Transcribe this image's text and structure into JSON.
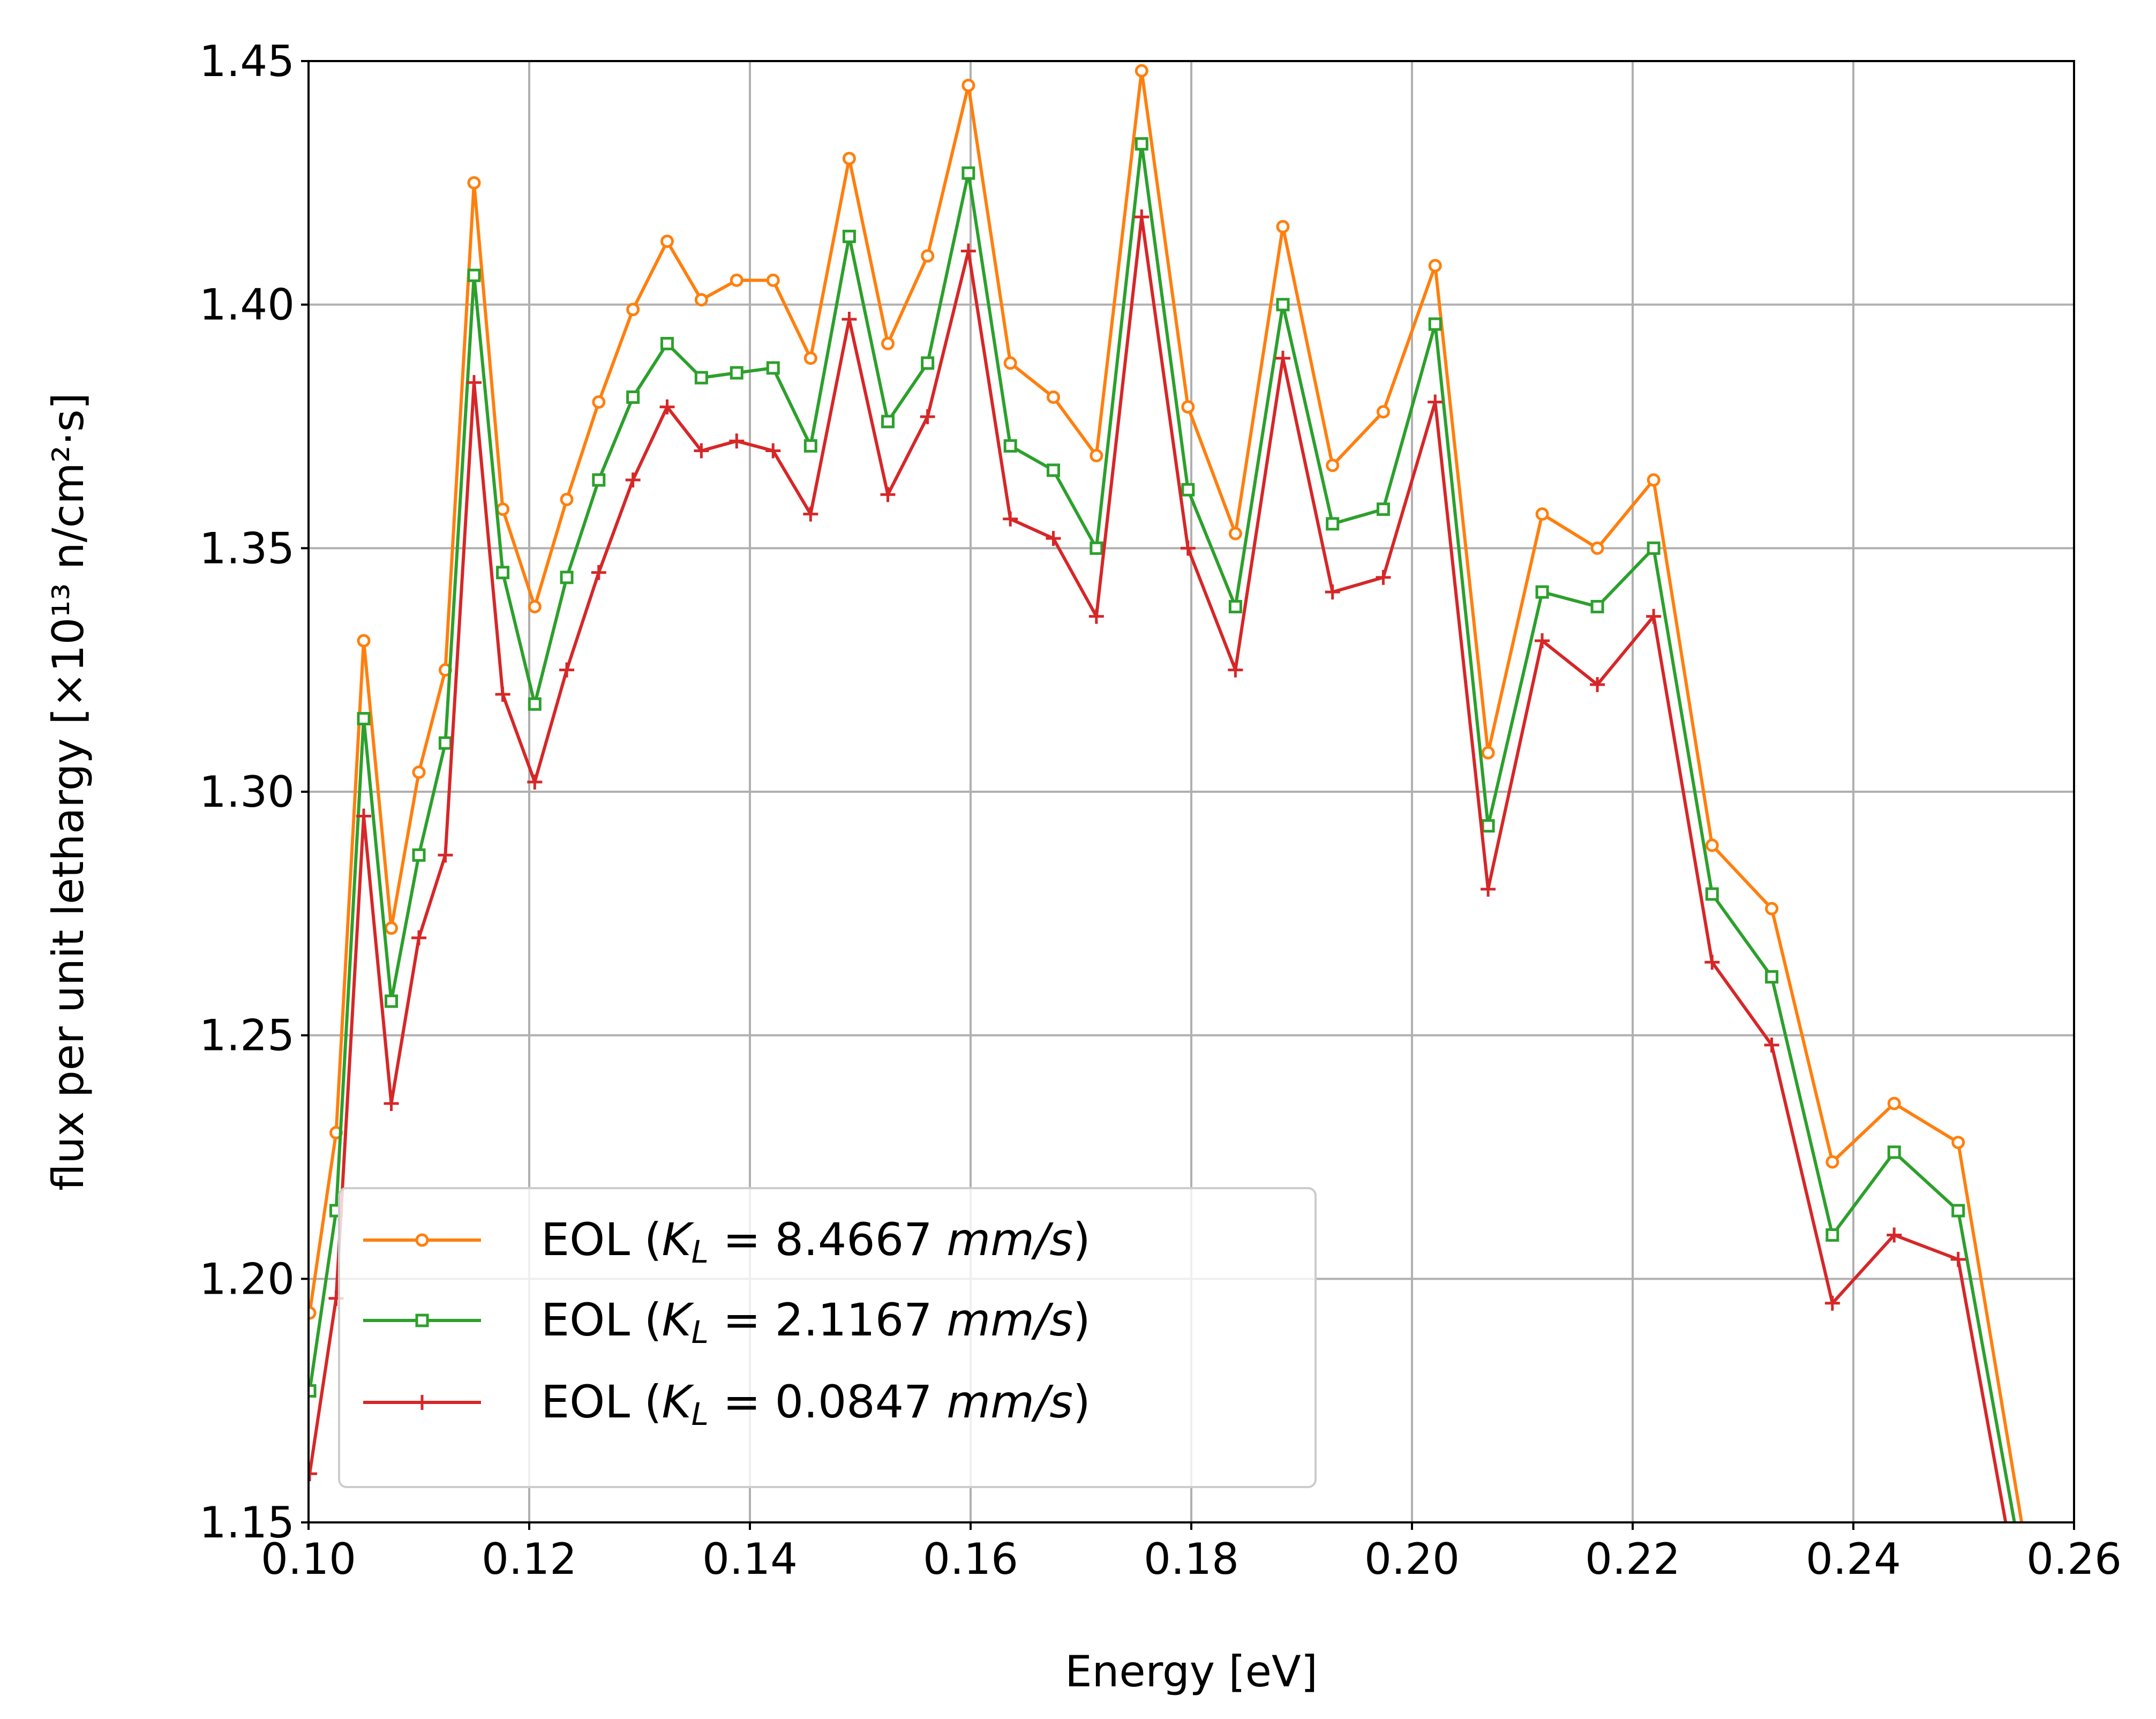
{
  "chart_data": {
    "type": "line",
    "xlabel": "Energy [eV]",
    "ylabel": "flux per unit lethargy [×10¹³ n/cm²·s]",
    "xlim": [
      0.1,
      0.26
    ],
    "ylim": [
      1.15,
      1.45
    ],
    "xticks": [
      "0.10",
      "0.12",
      "0.14",
      "0.16",
      "0.18",
      "0.20",
      "0.22",
      "0.24",
      "0.26"
    ],
    "yticks": [
      "1.15",
      "1.20",
      "1.25",
      "1.30",
      "1.35",
      "1.40",
      "1.45"
    ],
    "grid": true,
    "legend_position": "lower-left",
    "x": [
      0.1001,
      0.1025,
      0.105,
      0.1075,
      0.11,
      0.1124,
      0.115,
      0.1176,
      0.1205,
      0.1234,
      0.1263,
      0.1294,
      0.1325,
      0.1356,
      0.1388,
      0.1421,
      0.1455,
      0.149,
      0.1525,
      0.1561,
      0.1598,
      0.1636,
      0.1675,
      0.1714,
      0.1755,
      0.1797,
      0.184,
      0.1883,
      0.1928,
      0.1974,
      0.2021,
      0.2069,
      0.2118,
      0.2168,
      0.2219,
      0.2272,
      0.2326,
      0.2381,
      0.2437,
      0.2495,
      0.2554
    ],
    "series": [
      {
        "name": "EOL (K_L = 8.4667 mm/s)",
        "label_prefix": "EOL (",
        "label_var": "K",
        "label_sub": "L",
        "label_eq": " = 8.4667 ",
        "label_unit": "mm/s",
        "label_close": ")",
        "color": "#ff7f0e",
        "marker": "circle",
        "values": [
          1.193,
          1.23,
          1.331,
          1.272,
          1.304,
          1.325,
          1.425,
          1.358,
          1.338,
          1.36,
          1.38,
          1.399,
          1.413,
          1.401,
          1.405,
          1.405,
          1.389,
          1.43,
          1.392,
          1.41,
          1.445,
          1.388,
          1.381,
          1.369,
          1.448,
          1.379,
          1.353,
          1.416,
          1.367,
          1.378,
          1.408,
          1.308,
          1.357,
          1.35,
          1.364,
          1.289,
          1.276,
          1.224,
          1.236,
          1.228,
          1.148
        ]
      },
      {
        "name": "EOL (K_L = 2.1167 mm/s)",
        "label_prefix": "EOL (",
        "label_var": "K",
        "label_sub": "L",
        "label_eq": " = 2.1167 ",
        "label_unit": "mm/s",
        "label_close": ")",
        "color": "#2ca02c",
        "marker": "square",
        "values": [
          1.177,
          1.214,
          1.315,
          1.257,
          1.287,
          1.31,
          1.406,
          1.345,
          1.318,
          1.344,
          1.364,
          1.381,
          1.392,
          1.385,
          1.386,
          1.387,
          1.371,
          1.414,
          1.376,
          1.388,
          1.427,
          1.371,
          1.366,
          1.35,
          1.433,
          1.362,
          1.338,
          1.4,
          1.355,
          1.358,
          1.396,
          1.293,
          1.341,
          1.338,
          1.35,
          1.279,
          1.262,
          1.209,
          1.226,
          1.214,
          1.14
        ]
      },
      {
        "name": "EOL (K_L = 0.0847 mm/s)",
        "label_prefix": "EOL (",
        "label_var": "K",
        "label_sub": "L",
        "label_eq": " = 0.0847 ",
        "label_unit": "mm/s",
        "label_close": ")",
        "color": "#d62728",
        "marker": "plus",
        "values": [
          1.16,
          1.196,
          1.295,
          1.236,
          1.27,
          1.287,
          1.384,
          1.32,
          1.302,
          1.325,
          1.345,
          1.364,
          1.379,
          1.37,
          1.372,
          1.37,
          1.357,
          1.397,
          1.361,
          1.377,
          1.411,
          1.356,
          1.352,
          1.336,
          1.418,
          1.35,
          1.325,
          1.389,
          1.341,
          1.344,
          1.38,
          1.28,
          1.331,
          1.322,
          1.336,
          1.265,
          1.248,
          1.195,
          1.209,
          1.204,
          1.13
        ]
      }
    ]
  }
}
